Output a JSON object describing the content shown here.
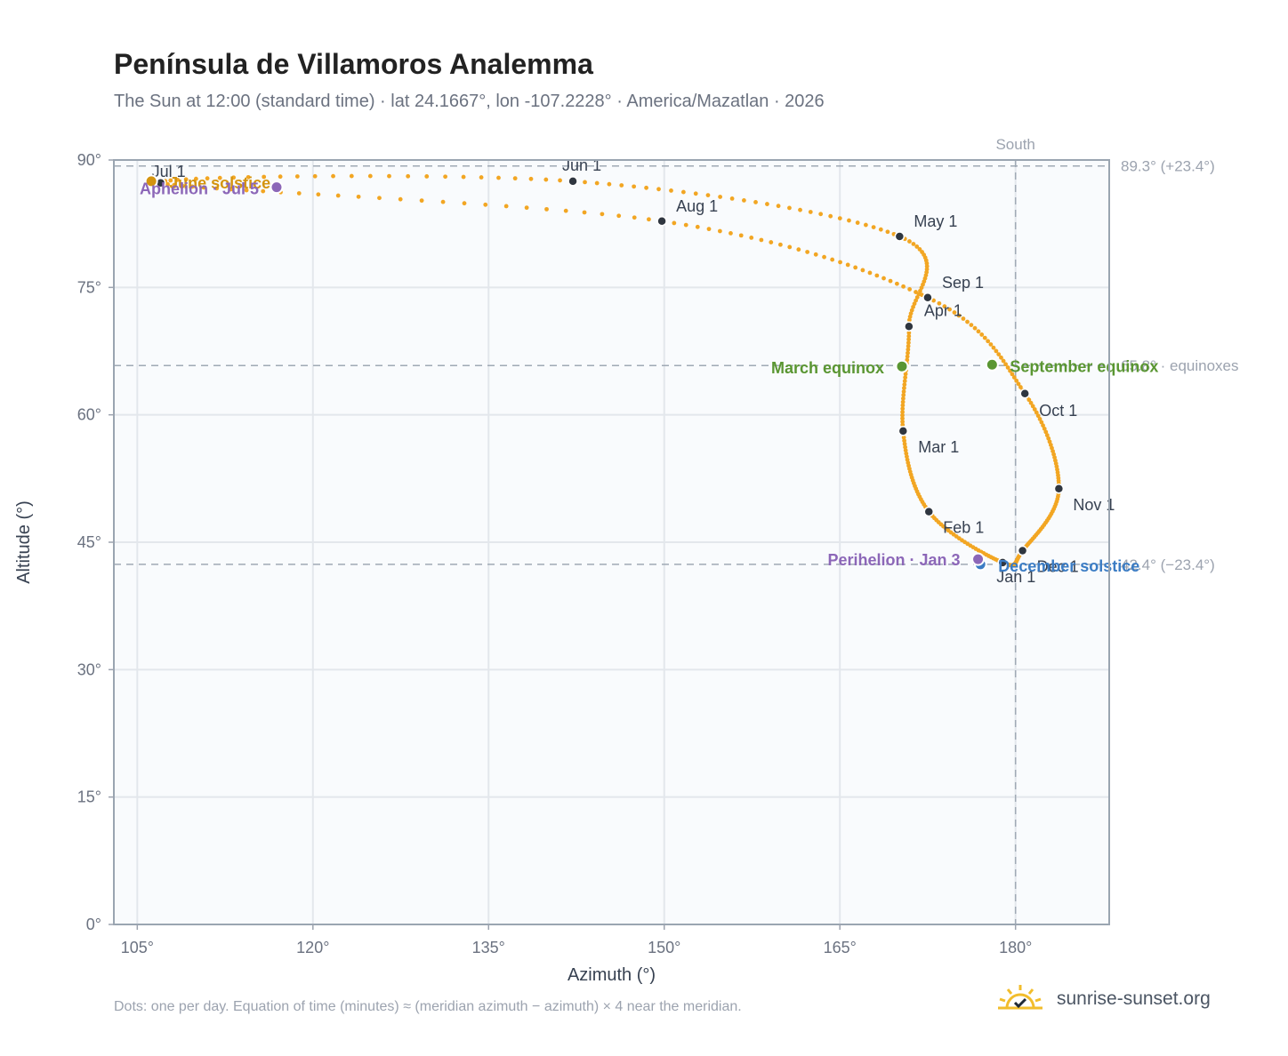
{
  "title": "Península de Villamoros Analemma",
  "subtitle": "The Sun at 12:00 (standard time) · lat 24.1667°, lon -107.2228° · America/Mazatlan · 2026",
  "footnote": "Dots: one per day. Equation of time (minutes) ≈ (meridian azimuth − azimuth) × 4 near the meridian.",
  "brand": "sunrise-sunset.org",
  "brand_icon": "sun-logo-icon",
  "colors": {
    "curve": "#f2a623",
    "month_dot": "#2f3640",
    "solstice_june": "#d4940f",
    "solstice_december": "#3b7cc4",
    "equinox": "#5a9632",
    "apsis": "#8c67b8",
    "reference": "#a0aab5",
    "plot_bg": "#f9fbfd",
    "grid": "#e3e7ec"
  },
  "chart_data": {
    "type": "scatter",
    "xlabel": "Azimuth (°)",
    "ylabel": "Altitude (°)",
    "xlim": [
      103,
      188
    ],
    "ylim": [
      0,
      90
    ],
    "xticks": [
      105,
      120,
      135,
      150,
      165,
      180
    ],
    "xtick_labels": [
      "105°",
      "120°",
      "135°",
      "150°",
      "165°",
      "180°"
    ],
    "yticks": [
      0,
      15,
      30,
      45,
      60,
      75,
      90
    ],
    "ytick_labels": [
      "0°",
      "15°",
      "30°",
      "45°",
      "60°",
      "75°",
      "90°"
    ],
    "grid": true,
    "meridian": {
      "azimuth": 180,
      "label": "South"
    },
    "reference_lines": [
      {
        "altitude": 89.3,
        "label": "89.3° (+23.4°)"
      },
      {
        "altitude": 65.8,
        "label": "65.8° · equinoxes"
      },
      {
        "altitude": 42.4,
        "label": "42.4° (−23.4°)"
      }
    ],
    "months": [
      {
        "label": "Jan 1",
        "azimuth": 178.9,
        "altitude": 42.6
      },
      {
        "label": "Feb 1",
        "azimuth": 172.6,
        "altitude": 48.6
      },
      {
        "label": "Mar 1",
        "azimuth": 170.4,
        "altitude": 58.1
      },
      {
        "label": "Apr 1",
        "azimuth": 170.9,
        "altitude": 70.4
      },
      {
        "label": "May 1",
        "azimuth": 170.1,
        "altitude": 81.0
      },
      {
        "label": "Jun 1",
        "azimuth": 142.2,
        "altitude": 87.5
      },
      {
        "label": "Jul 1",
        "azimuth": 107.0,
        "altitude": 87.3
      },
      {
        "label": "Aug 1",
        "azimuth": 149.8,
        "altitude": 82.8
      },
      {
        "label": "Sep 1",
        "azimuth": 172.5,
        "altitude": 73.8
      },
      {
        "label": "Oct 1",
        "azimuth": 180.8,
        "altitude": 62.5
      },
      {
        "label": "Nov 1",
        "azimuth": 183.7,
        "altitude": 51.3
      },
      {
        "label": "Dec 1",
        "azimuth": 180.6,
        "altitude": 44.0
      }
    ],
    "events": [
      {
        "label": "June solstice",
        "azimuth": 106.2,
        "altitude": 87.5,
        "kind": "solstice_june"
      },
      {
        "label": "December solstice",
        "azimuth": 177.0,
        "altitude": 42.4,
        "kind": "solstice_december"
      },
      {
        "label": "March equinox",
        "azimuth": 170.3,
        "altitude": 65.7,
        "kind": "equinox"
      },
      {
        "label": "September equinox",
        "azimuth": 178.0,
        "altitude": 65.9,
        "kind": "equinox"
      },
      {
        "label": "Aphelion · Jul 5",
        "azimuth": 116.9,
        "altitude": 86.8,
        "kind": "apsis"
      },
      {
        "label": "Perihelion · Jan 3",
        "azimuth": 176.8,
        "altitude": 43.0,
        "kind": "apsis"
      }
    ]
  }
}
